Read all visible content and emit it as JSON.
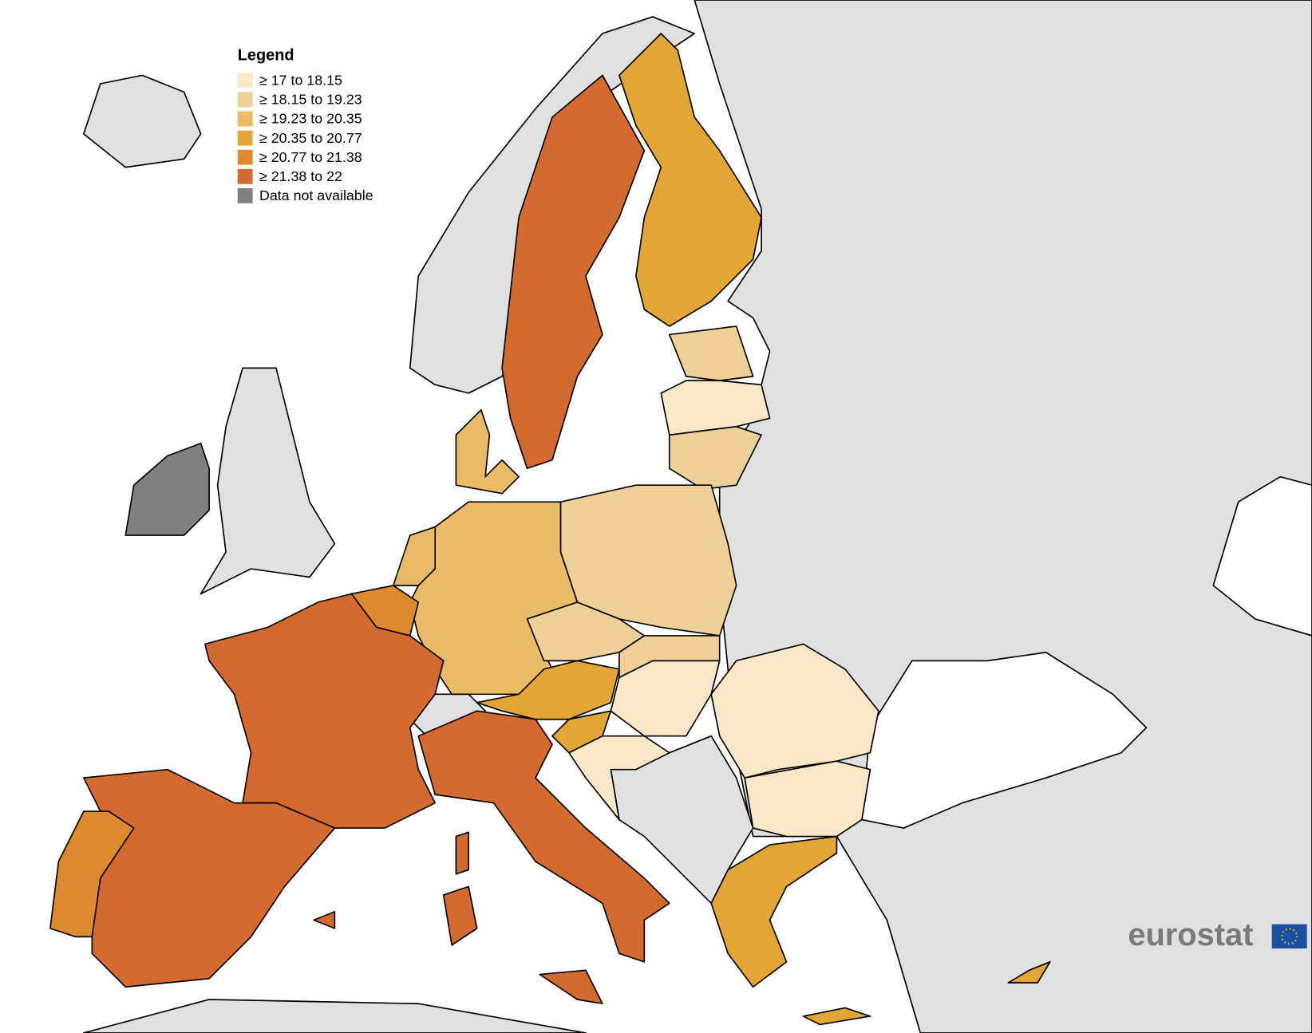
{
  "legend": {
    "title": "Legend",
    "items": [
      {
        "label": "≥ 17 to 18.15",
        "color": "#fbe6c6"
      },
      {
        "label": "≥ 18.15 to 19.23",
        "color": "#f0cf96"
      },
      {
        "label": "≥ 19.23 to 20.35",
        "color": "#eabb66"
      },
      {
        "label": "≥ 20.35 to 20.77",
        "color": "#e3a535"
      },
      {
        "label": "≥ 20.77 to 21.38",
        "color": "#dc8a2d"
      },
      {
        "label": "≥ 21.38 to 22",
        "color": "#d56a30"
      },
      {
        "label": "Data not available",
        "color": "#808080"
      }
    ]
  },
  "logo": {
    "text": "eurostat"
  }
}
